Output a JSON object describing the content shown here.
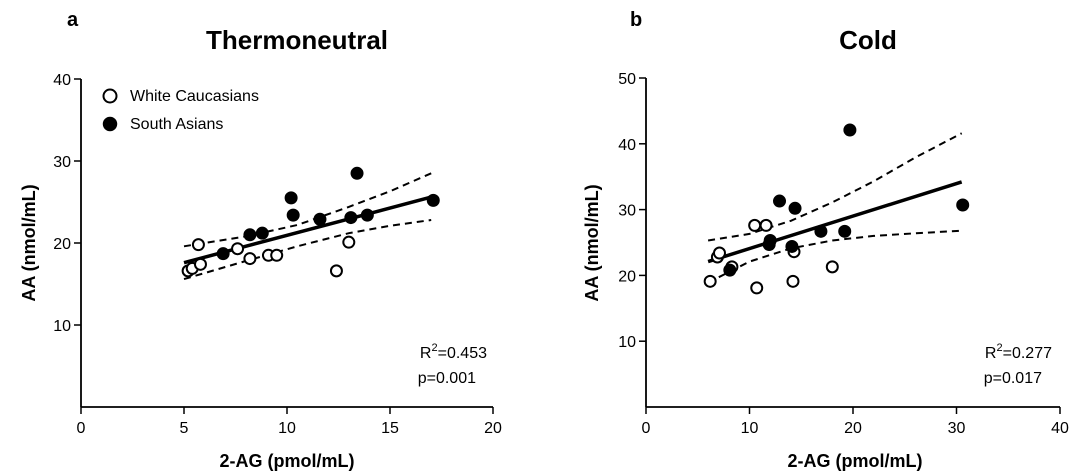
{
  "chart_data": [
    {
      "type": "scatter",
      "panel_label": "a",
      "title": "Thermoneutral",
      "xlabel": "2-AG (pmol/mL)",
      "ylabel": "AA (nmol/mL)",
      "xlim": [
        0,
        20
      ],
      "ylim": [
        0,
        40
      ],
      "x_ticks": [
        0,
        5,
        10,
        15,
        20
      ],
      "y_ticks": [
        10,
        20,
        30,
        40
      ],
      "legend": {
        "position": "top-left",
        "entries": [
          {
            "label": "White Caucasians",
            "marker": "open-circle"
          },
          {
            "label": "South Asians",
            "marker": "filled-circle"
          }
        ]
      },
      "series": [
        {
          "name": "White Caucasians",
          "marker": "open-circle",
          "points": [
            [
              5.2,
              16.6
            ],
            [
              5.4,
              16.9
            ],
            [
              5.7,
              19.8
            ],
            [
              5.8,
              17.4
            ],
            [
              7.6,
              19.3
            ],
            [
              8.2,
              18.1
            ],
            [
              9.1,
              18.5
            ],
            [
              9.5,
              18.5
            ],
            [
              12.4,
              16.6
            ],
            [
              13.0,
              20.1
            ]
          ]
        },
        {
          "name": "South Asians",
          "marker": "filled-circle",
          "points": [
            [
              6.9,
              18.7
            ],
            [
              8.2,
              21.0
            ],
            [
              8.8,
              21.2
            ],
            [
              10.2,
              25.5
            ],
            [
              10.3,
              23.4
            ],
            [
              11.6,
              22.9
            ],
            [
              13.1,
              23.1
            ],
            [
              13.4,
              28.5
            ],
            [
              13.9,
              23.4
            ],
            [
              17.1,
              25.2
            ]
          ]
        }
      ],
      "fit_line": {
        "x": [
          5.0,
          17.0
        ],
        "y": [
          17.6,
          25.6
        ]
      },
      "ci_upper": {
        "x": [
          5.0,
          8.0,
          10.5,
          13.0,
          15.0,
          17.0
        ],
        "y": [
          19.6,
          20.8,
          22.2,
          24.4,
          26.3,
          28.5
        ]
      },
      "ci_lower": {
        "x": [
          5.0,
          8.0,
          10.5,
          13.0,
          15.0,
          17.0
        ],
        "y": [
          15.6,
          17.8,
          19.6,
          21.2,
          22.1,
          22.8
        ]
      },
      "annotation": {
        "r2_base": "R",
        "r2_sup": "2",
        "r2_value": "=0.453",
        "p": "p=0.001"
      }
    },
    {
      "type": "scatter",
      "panel_label": "b",
      "title": "Cold",
      "xlabel": "2-AG (pmol/mL)",
      "ylabel": "AA (nmol/mL)",
      "xlim": [
        0,
        40
      ],
      "ylim": [
        0,
        50
      ],
      "x_ticks": [
        0,
        10,
        20,
        30,
        40
      ],
      "y_ticks": [
        10,
        20,
        30,
        40,
        50
      ],
      "series": [
        {
          "name": "White Caucasians",
          "marker": "open-circle",
          "points": [
            [
              6.2,
              19.1
            ],
            [
              6.9,
              22.8
            ],
            [
              7.1,
              23.4
            ],
            [
              8.3,
              21.3
            ],
            [
              10.5,
              27.6
            ],
            [
              10.7,
              18.1
            ],
            [
              11.6,
              27.6
            ],
            [
              14.2,
              19.1
            ],
            [
              14.3,
              23.6
            ],
            [
              18.0,
              21.3
            ]
          ]
        },
        {
          "name": "South Asians",
          "marker": "filled-circle",
          "points": [
            [
              8.1,
              20.8
            ],
            [
              11.9,
              24.7
            ],
            [
              12.0,
              25.3
            ],
            [
              12.9,
              31.3
            ],
            [
              14.1,
              24.4
            ],
            [
              14.4,
              30.2
            ],
            [
              16.9,
              26.7
            ],
            [
              19.2,
              26.7
            ],
            [
              19.7,
              42.1
            ],
            [
              30.6,
              30.7
            ]
          ]
        }
      ],
      "fit_line": {
        "x": [
          6.0,
          30.5
        ],
        "y": [
          22.1,
          34.2
        ]
      },
      "ci_upper": {
        "x": [
          6.0,
          10.0,
          14.0,
          18.0,
          22.0,
          26.0,
          30.5
        ],
        "y": [
          25.3,
          26.3,
          28.3,
          31.1,
          34.3,
          37.9,
          41.6
        ]
      },
      "ci_lower": {
        "x": [
          6.0,
          10.0,
          14.0,
          18.0,
          22.0,
          26.0,
          30.5
        ],
        "y": [
          18.9,
          22.1,
          24.1,
          25.3,
          26.0,
          26.4,
          26.8
        ]
      },
      "annotation": {
        "r2_base": "R",
        "r2_sup": "2",
        "r2_value": "=0.277",
        "p": "p=0.017"
      }
    }
  ]
}
